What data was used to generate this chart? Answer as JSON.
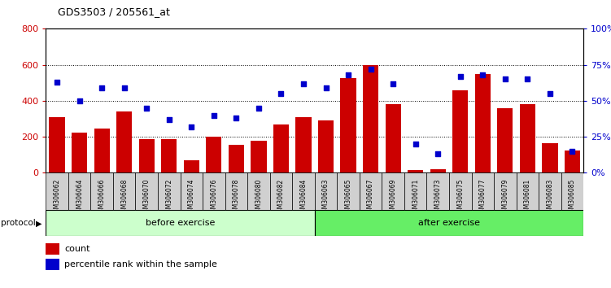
{
  "title": "GDS3503 / 205561_at",
  "categories": [
    "GSM306062",
    "GSM306064",
    "GSM306066",
    "GSM306068",
    "GSM306070",
    "GSM306072",
    "GSM306074",
    "GSM306076",
    "GSM306078",
    "GSM306080",
    "GSM306082",
    "GSM306084",
    "GSM306063",
    "GSM306065",
    "GSM306067",
    "GSM306069",
    "GSM306071",
    "GSM306073",
    "GSM306075",
    "GSM306077",
    "GSM306079",
    "GSM306081",
    "GSM306083",
    "GSM306085"
  ],
  "counts": [
    310,
    225,
    245,
    340,
    185,
    185,
    70,
    200,
    155,
    180,
    270,
    310,
    290,
    525,
    600,
    380,
    15,
    20,
    460,
    550,
    360,
    380,
    165,
    125
  ],
  "percentile": [
    63,
    50,
    59,
    59,
    45,
    37,
    32,
    40,
    38,
    45,
    55,
    62,
    59,
    68,
    72,
    62,
    20,
    13,
    67,
    68,
    65,
    65,
    55,
    15
  ],
  "before_count": 12,
  "after_count": 12,
  "bar_color": "#cc0000",
  "dot_color": "#0000cc",
  "before_color": "#ccffcc",
  "after_color": "#66ee66",
  "protocol_label": "protocol",
  "before_label": "before exercise",
  "after_label": "after exercise",
  "legend_count_label": "count",
  "legend_percentile_label": "percentile rank within the sample",
  "ylim_left": [
    0,
    800
  ],
  "ylim_right": [
    0,
    100
  ],
  "yticks_left": [
    0,
    200,
    400,
    600,
    800
  ],
  "yticks_right": [
    0,
    25,
    50,
    75,
    100
  ],
  "background_color": "#ffffff"
}
